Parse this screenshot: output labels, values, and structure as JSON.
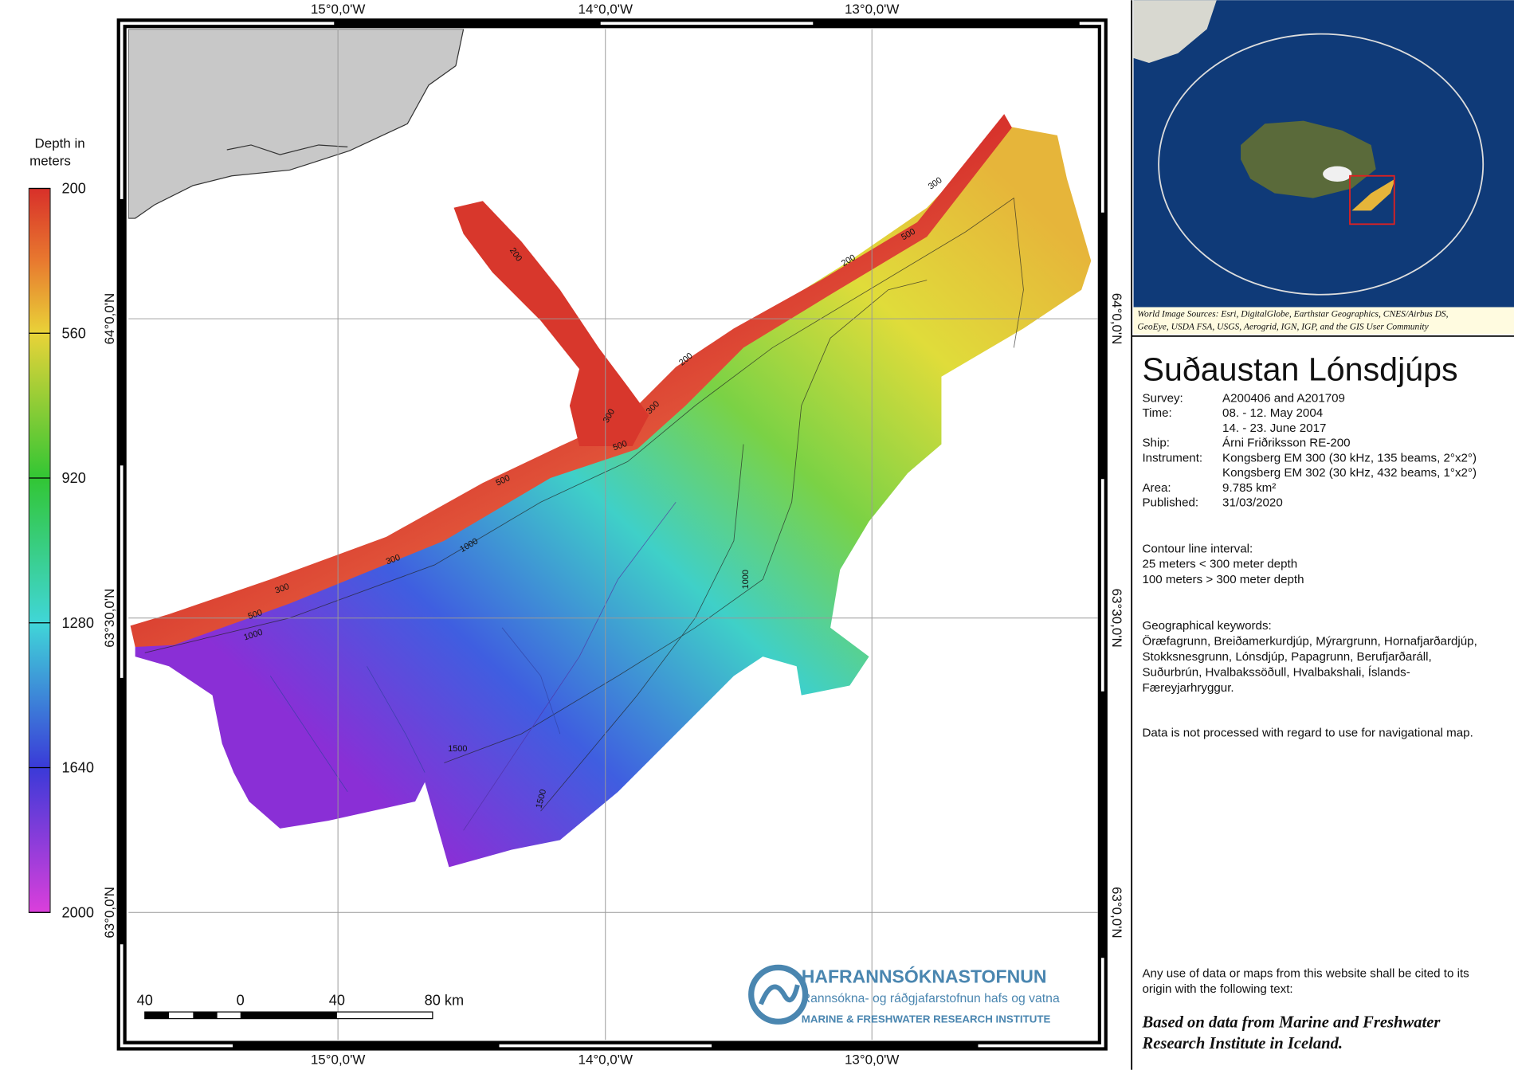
{
  "map": {
    "lon_labels": [
      "15°0,0'W",
      "14°0,0'W",
      "13°0,0'W"
    ],
    "lat_labels": [
      "64°0,0'N",
      "63°30,0'N",
      "63°0,0'N"
    ],
    "legend": {
      "title_lines": [
        "Depth  in",
        "meters"
      ],
      "range": [
        200,
        2000
      ],
      "ticks": [
        200,
        560,
        920,
        1280,
        1640,
        2000
      ]
    },
    "contour_labels": [
      200,
      300,
      500,
      200,
      200,
      300,
      300,
      500,
      500,
      1000,
      300,
      300,
      500,
      1000,
      1000,
      1500,
      1500
    ],
    "scale_bar": [
      "40",
      "0",
      "40",
      "80 km"
    ],
    "inset_credit": [
      "World Image Sources: Esri, DigitalGlobe, Earthstar Geographics, CNES/Airbus DS,",
      "GeoEye, USDA FSA, USGS, Aerogrid, IGN, IGP, and the GIS User Community"
    ]
  },
  "logo": {
    "name": "HAFRANNSÓKNASTOFNUN",
    "subtitle": "Rannsókna- og ráðgjafarstofnun hafs og vatna",
    "english": "MARINE & FRESHWATER RESEARCH INSTITUTE"
  },
  "info": {
    "title": "Suðaustan Lónsdjúps",
    "rows": [
      {
        "label": "Survey:",
        "values": [
          "A200406 and A201709"
        ]
      },
      {
        "label": "Time:",
        "values": [
          "08. - 12. May 2004",
          "14. - 23. June 2017"
        ]
      },
      {
        "label": "Ship:",
        "values": [
          "Árni Friðriksson RE-200"
        ]
      },
      {
        "label": "Instrument:",
        "values": [
          "Kongsberg EM 300 (30 kHz, 135 beams, 2°x2°)",
          "Kongsberg EM 302 (30 kHz, 432 beams, 1°x2°)"
        ]
      },
      {
        "label": "Area:",
        "values": [
          "9.785 km²"
        ]
      },
      {
        "label": "Published:",
        "values": [
          "31/03/2020"
        ]
      }
    ],
    "contour_lines": [
      "Contour line interval:",
      "25 meters < 300 meter depth",
      "100 meters > 300 meter depth"
    ],
    "keywords_lines": [
      "Geographical keywords:",
      "Öræfagrunn, Breiðamerkurdjúp, Mýrargrunn, Hornafjarðardjúp,",
      "Stokksnesgrunn, Lónsdjúp, Papagrunn, Berufjarðaráll,",
      "Suðurbrún, Hvalbakssöðull, Hvalbakshali, Íslands-",
      "Færeyjarhryggur."
    ],
    "disclaimer": "Data is not processed with regard to use for navigational map.",
    "citation_lines": [
      "Any use of data or maps from this website shall be cited to its",
      "origin with the following text:"
    ],
    "quote_lines": [
      "Based on data from Marine and Freshwater",
      "Research Institute in Iceland."
    ]
  }
}
